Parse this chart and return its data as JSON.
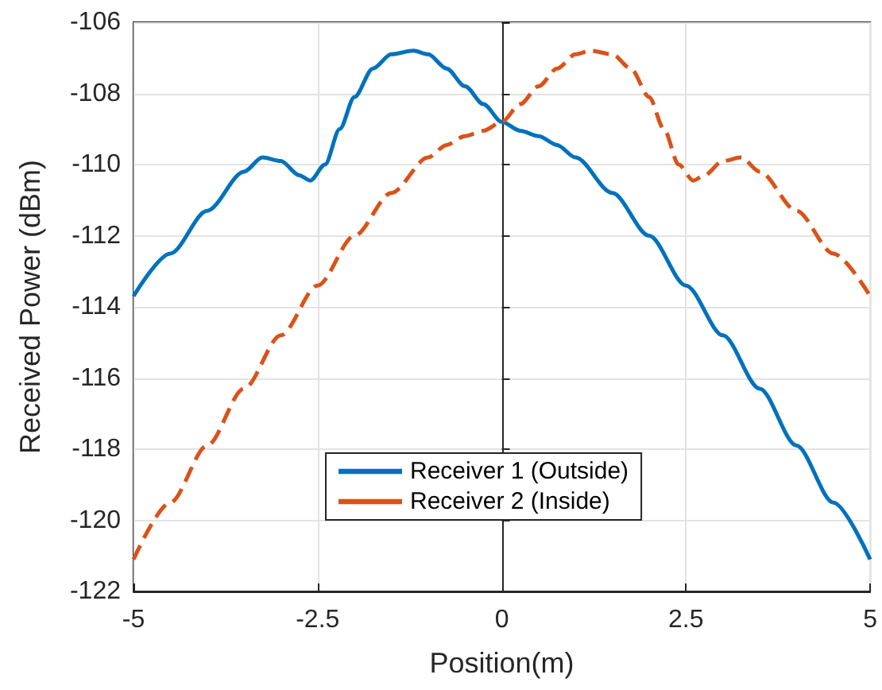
{
  "chart_data": {
    "type": "line",
    "xlabel": "Position(m)",
    "ylabel": "Received Power (dBm)",
    "xlim": [
      -5,
      5
    ],
    "xticks": [
      -5,
      -2.5,
      0,
      2.5,
      5
    ],
    "ylim": [
      -122,
      -106
    ],
    "yticks": [
      -122,
      -120,
      -118,
      -116,
      -114,
      -112,
      -110,
      -108,
      -106
    ],
    "grid": true,
    "legend": "bottom",
    "marker": "none",
    "series": [
      {
        "name": "Receiver 1 (Outside)",
        "color": "#0072bd",
        "line_style": "solid",
        "x": [
          -5,
          -4.5,
          -4,
          -3.5,
          -3.25,
          -3,
          -2.75,
          -2.6,
          -2.4,
          -2.2,
          -2,
          -1.75,
          -1.5,
          -1.2,
          -1,
          -0.75,
          -0.5,
          -0.25,
          0,
          0.25,
          0.5,
          0.75,
          1,
          1.5,
          2,
          2.5,
          3,
          3.5,
          4,
          4.5,
          5
        ],
        "values": [
          -113.7,
          -112.5,
          -111.3,
          -110.2,
          -109.8,
          -109.9,
          -110.3,
          -110.45,
          -110,
          -109,
          -108.1,
          -107.3,
          -106.9,
          -106.8,
          -106.9,
          -107.3,
          -107.8,
          -108.3,
          -108.8,
          -109.05,
          -109.2,
          -109.45,
          -109.8,
          -110.8,
          -112,
          -113.4,
          -114.8,
          -116.3,
          -117.9,
          -119.5,
          -121.1
        ]
      },
      {
        "name": "Receiver 2 (Inside)",
        "color": "#d95319",
        "line_style": "dashed",
        "x": [
          -5,
          -4.5,
          -4,
          -3.5,
          -3,
          -2.5,
          -2,
          -1.5,
          -1,
          -0.75,
          -0.5,
          -0.25,
          0,
          0.25,
          0.5,
          0.75,
          1,
          1.2,
          1.5,
          1.75,
          2,
          2.2,
          2.4,
          2.6,
          2.75,
          3,
          3.25,
          3.5,
          4,
          4.5,
          5
        ],
        "values": [
          -121.1,
          -119.5,
          -117.9,
          -116.3,
          -114.8,
          -113.4,
          -112,
          -110.8,
          -109.8,
          -109.45,
          -109.2,
          -109.05,
          -108.8,
          -108.3,
          -107.8,
          -107.3,
          -106.9,
          -106.8,
          -106.9,
          -107.3,
          -108.1,
          -109,
          -110,
          -110.45,
          -110.3,
          -109.9,
          -109.8,
          -110.2,
          -111.3,
          -112.5,
          -113.7
        ]
      }
    ]
  }
}
